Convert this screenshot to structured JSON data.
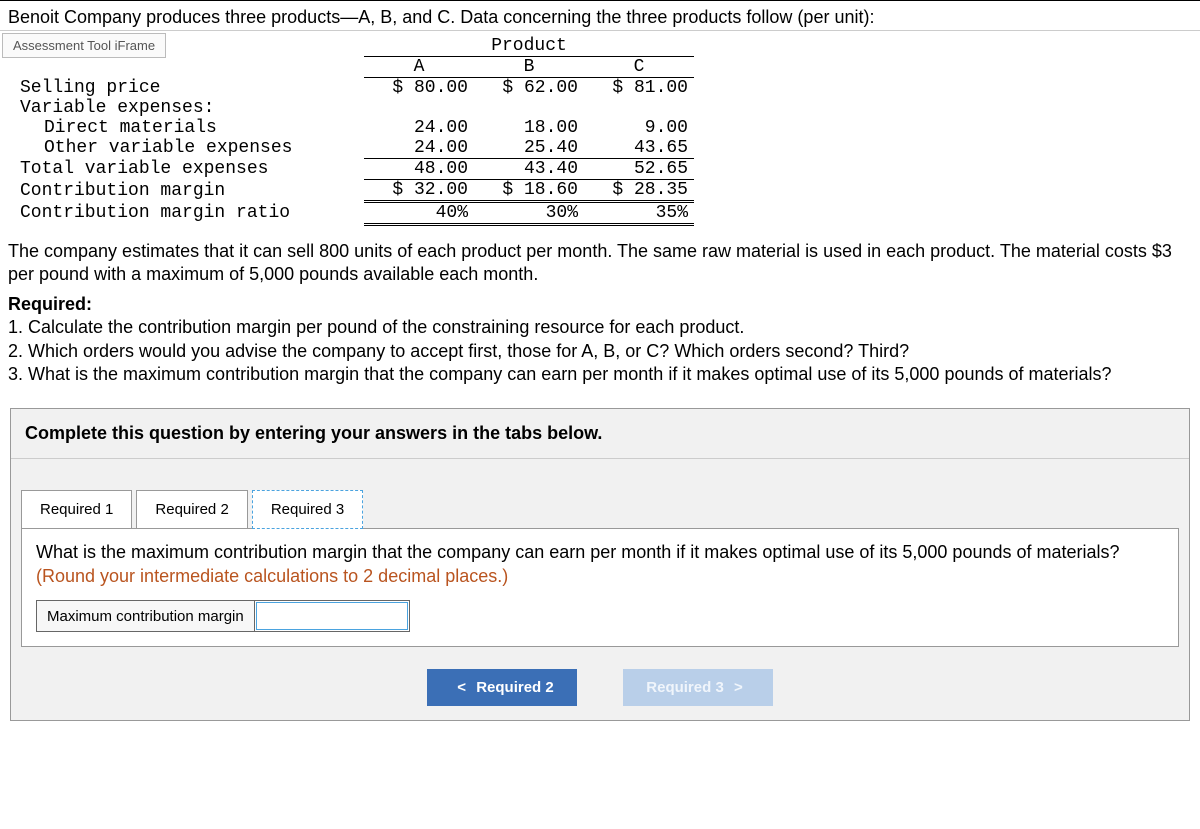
{
  "intro_text": "Benoit Company produces three products—A, B, and C. Data concerning the three products follow (per unit):",
  "iframe_label": "Assessment Tool iFrame",
  "product_table": {
    "header_title": "Product",
    "columns": [
      "A",
      "B",
      "C"
    ],
    "rows": {
      "selling_price": {
        "label": "Selling price",
        "values": [
          "$ 80.00",
          "$ 62.00",
          "$ 81.00"
        ]
      },
      "variable_expenses_header": {
        "label": "Variable expenses:"
      },
      "direct_materials": {
        "label": "Direct materials",
        "values": [
          "24.00",
          "18.00",
          "9.00"
        ]
      },
      "other_variable": {
        "label": "Other variable expenses",
        "values": [
          "24.00",
          "25.40",
          "43.65"
        ]
      },
      "total_variable": {
        "label": "Total variable expenses",
        "values": [
          "48.00",
          "43.40",
          "52.65"
        ]
      },
      "contribution_margin": {
        "label": "Contribution margin",
        "values": [
          "$ 32.00",
          "$ 18.60",
          "$ 28.35"
        ]
      },
      "contribution_margin_ratio": {
        "label": "Contribution margin ratio",
        "values": [
          "40%",
          "30%",
          "35%"
        ]
      }
    }
  },
  "body_paragraph": "The company estimates that it can sell 800 units of each product per month. The same raw material is used in each product. The material costs $3 per pound with a maximum of 5,000 pounds available each month.",
  "required": {
    "title": "Required:",
    "items": [
      "1. Calculate the contribution margin per pound of the constraining resource for each product.",
      "2. Which orders would you advise the company to accept first, those for A, B, or C? Which orders second? Third?",
      "3. What is the maximum contribution margin that the company can earn per month if it makes optimal use of its 5,000 pounds of materials?"
    ]
  },
  "answer_area": {
    "instruction": "Complete this question by entering your answers in the tabs below.",
    "tabs": [
      "Required 1",
      "Required 2",
      "Required 3"
    ],
    "active_tab": 2,
    "panel_question": "What is the maximum contribution margin that the company can earn per month if it makes optimal use of its 5,000 pounds of materials? ",
    "panel_hint": "(Round your intermediate calculations to 2 decimal places.)",
    "input_label": "Maximum contribution margin",
    "input_value": "",
    "nav_prev": "Required 2",
    "nav_next": "Required 3"
  },
  "colors": {
    "tab_active_border": "#4aa3df",
    "nav_btn_bg": "#3b6fb6",
    "nav_btn_disabled_bg": "#b9cfe9",
    "hint_color": "#b9541f",
    "panel_bg": "#f1f1f1"
  }
}
